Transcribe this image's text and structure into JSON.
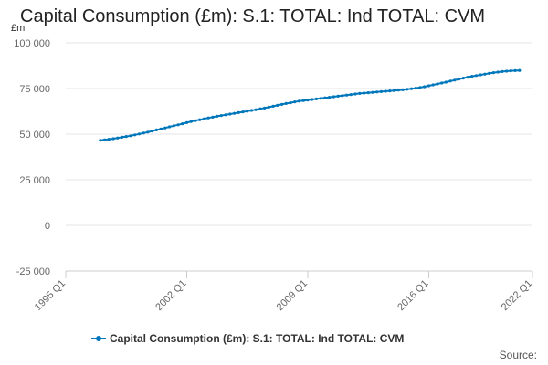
{
  "chart_data": {
    "type": "line",
    "title": "Capital Consumption (£m): S.1: TOTAL: Ind TOTAL: CVM",
    "unit_label": "£m",
    "ylabel": "£m",
    "xlabel": "",
    "ylim": [
      -25000,
      100000
    ],
    "yticks": [
      {
        "value": 100000,
        "label": "100 000"
      },
      {
        "value": 75000,
        "label": "75 000"
      },
      {
        "value": 50000,
        "label": "50 000"
      },
      {
        "value": 25000,
        "label": "25 000"
      },
      {
        "value": 0,
        "label": "0"
      },
      {
        "value": -25000,
        "label": "-25 000"
      }
    ],
    "xlim": [
      1995.0,
      2022.0
    ],
    "xticks": [
      {
        "value": 1995.0,
        "label": "1995 Q1"
      },
      {
        "value": 2002.0,
        "label": "2002 Q1"
      },
      {
        "value": 2009.0,
        "label": "2009 Q1"
      },
      {
        "value": 2016.0,
        "label": "2016 Q1"
      },
      {
        "value": 2022.0,
        "label": "2022 Q1"
      }
    ],
    "grid": true,
    "legend_position": "bottom",
    "series": [
      {
        "name": "Capital Consumption (£m): S.1: TOTAL: Ind TOTAL: CVM",
        "color": "#0077bb",
        "x": [
          1997.0,
          1997.25,
          1997.5,
          1997.75,
          1998.0,
          1998.25,
          1998.5,
          1998.75,
          1999.0,
          1999.25,
          1999.5,
          1999.75,
          2000.0,
          2000.25,
          2000.5,
          2000.75,
          2001.0,
          2001.25,
          2001.5,
          2001.75,
          2002.0,
          2002.25,
          2002.5,
          2002.75,
          2003.0,
          2003.25,
          2003.5,
          2003.75,
          2004.0,
          2004.25,
          2004.5,
          2004.75,
          2005.0,
          2005.25,
          2005.5,
          2005.75,
          2006.0,
          2006.25,
          2006.5,
          2006.75,
          2007.0,
          2007.25,
          2007.5,
          2007.75,
          2008.0,
          2008.25,
          2008.5,
          2008.75,
          2009.0,
          2009.25,
          2009.5,
          2009.75,
          2010.0,
          2010.25,
          2010.5,
          2010.75,
          2011.0,
          2011.25,
          2011.5,
          2011.75,
          2012.0,
          2012.25,
          2012.5,
          2012.75,
          2013.0,
          2013.25,
          2013.5,
          2013.75,
          2014.0,
          2014.25,
          2014.5,
          2014.75,
          2015.0,
          2015.25,
          2015.5,
          2015.75,
          2016.0,
          2016.25,
          2016.5,
          2016.75,
          2017.0,
          2017.25,
          2017.5,
          2017.75,
          2018.0,
          2018.25,
          2018.5,
          2018.75,
          2019.0,
          2019.25,
          2019.5,
          2019.75,
          2020.0,
          2020.25,
          2020.5,
          2020.75,
          2021.0,
          2021.25
        ],
        "values": [
          46600,
          46900,
          47200,
          47500,
          47900,
          48300,
          48700,
          49100,
          49600,
          50100,
          50600,
          51100,
          51700,
          52300,
          52800,
          53400,
          54000,
          54600,
          55100,
          55700,
          56300,
          56900,
          57400,
          57900,
          58400,
          58900,
          59300,
          59800,
          60200,
          60600,
          61000,
          61400,
          61800,
          62200,
          62600,
          63000,
          63400,
          63900,
          64300,
          64800,
          65300,
          65800,
          66300,
          66800,
          67200,
          67700,
          68100,
          68400,
          68700,
          69000,
          69300,
          69600,
          69900,
          70200,
          70500,
          70800,
          71100,
          71400,
          71700,
          72000,
          72300,
          72500,
          72700,
          72900,
          73100,
          73300,
          73500,
          73700,
          73900,
          74100,
          74300,
          74600,
          74900,
          75200,
          75600,
          76000,
          76500,
          77000,
          77500,
          78000,
          78500,
          79100,
          79600,
          80200,
          80700,
          81200,
          81700,
          82100,
          82500,
          82900,
          83300,
          83700,
          84000,
          84300,
          84500,
          84700,
          84800,
          84900
        ]
      }
    ]
  },
  "source_label": "Source:"
}
